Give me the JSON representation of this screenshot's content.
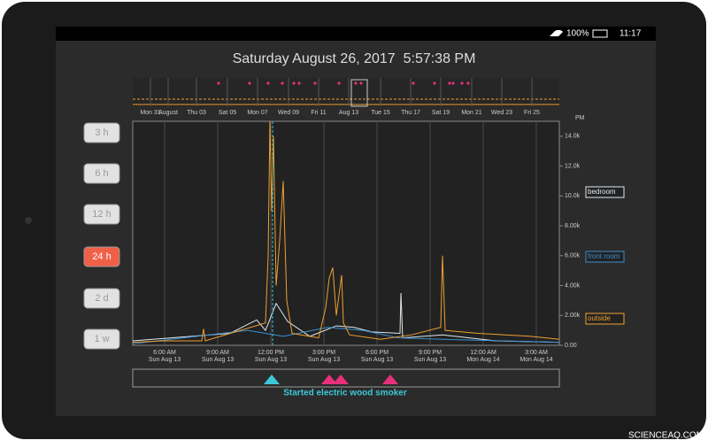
{
  "status_bar": {
    "battery": "100%",
    "time": "11:17"
  },
  "header": {
    "title": "Saturday August 26, 2017  5:57:38 PM"
  },
  "range_buttons": [
    "3 h",
    "6 h",
    "12 h",
    "24 h",
    "2 d",
    "1 w"
  ],
  "active_range": "24 h",
  "overview": {
    "labels": [
      "Mon 31",
      "August",
      "Thu 03",
      "Sat 05",
      "Mon 07",
      "Wed 09",
      "Fri 11",
      "Aug 13",
      "Tue 15",
      "Thu 17",
      "Sat 19",
      "Mon 21",
      "Wed 23",
      "Fri 25"
    ]
  },
  "chart_data": {
    "type": "line",
    "y_label": "PM",
    "xlim": [
      4.2,
      28.3
    ],
    "ylim": [
      0,
      15000
    ],
    "xticks": [
      {
        "value": 6,
        "label": [
          "6:00 AM",
          "Sun Aug 13"
        ]
      },
      {
        "value": 9,
        "label": [
          "9:00 AM",
          "Sun Aug 13"
        ]
      },
      {
        "value": 12,
        "label": [
          "12:00 PM",
          "Sun Aug 13"
        ]
      },
      {
        "value": 15,
        "label": [
          "3:00 PM",
          "Sun Aug 13"
        ]
      },
      {
        "value": 18,
        "label": [
          "6:00 PM",
          "Sun Aug 13"
        ]
      },
      {
        "value": 21,
        "label": [
          "9:00 PM",
          "Sun Aug 13"
        ]
      },
      {
        "value": 24,
        "label": [
          "12:00 AM",
          "Mon Aug 14"
        ]
      },
      {
        "value": 27,
        "label": [
          "3:00 AM",
          "Mon Aug 14"
        ]
      }
    ],
    "yticks": [
      {
        "value": 0,
        "label": "0.00"
      },
      {
        "value": 2000,
        "label": "2.00k"
      },
      {
        "value": 4000,
        "label": "4.00k"
      },
      {
        "value": 6000,
        "label": "6.00k"
      },
      {
        "value": 8000,
        "label": "8.00k"
      },
      {
        "value": 10000,
        "label": "10.0k"
      },
      {
        "value": 12000,
        "label": "12.0k"
      },
      {
        "value": 14000,
        "label": "14.0k"
      }
    ],
    "grid": true,
    "series": [
      {
        "name": "bedroom",
        "color": "#dfe8ef",
        "x": [
          4.2,
          9.7,
          11.2,
          11.7,
          12.3,
          12.95,
          14.2,
          15.7,
          16.7,
          17.7,
          19.3,
          19.35,
          19.45,
          21.7,
          24.7,
          28.3
        ],
        "values": [
          300,
          800,
          1700,
          1000,
          2800,
          1600,
          600,
          1300,
          1200,
          900,
          800,
          3500,
          500,
          700,
          300,
          200
        ]
      },
      {
        "name": "front room",
        "color": "#3a8fd0",
        "x": [
          4.2,
          10.7,
          11.7,
          12.7,
          15.2,
          17.2,
          19.2,
          21.7,
          28.3
        ],
        "values": [
          100,
          1000,
          800,
          600,
          1200,
          1000,
          500,
          400,
          200
        ]
      },
      {
        "name": "outside",
        "color": "#f0a030",
        "x": [
          4.2,
          5.9,
          8.1,
          8.2,
          8.3,
          11.7,
          11.85,
          11.95,
          12.05,
          12.15,
          12.3,
          12.5,
          12.7,
          12.9,
          13.2,
          14.7,
          15.1,
          15.3,
          15.5,
          15.7,
          16.0,
          16.1,
          16.45,
          18.2,
          19.95,
          21.6,
          21.7,
          21.85,
          23.7,
          26.7,
          28.3
        ],
        "values": [
          200,
          300,
          300,
          1100,
          300,
          1500,
          6000,
          15000,
          9000,
          14000,
          4000,
          7000,
          11000,
          3000,
          800,
          500,
          2500,
          4500,
          5200,
          2000,
          4700,
          1500,
          700,
          400,
          700,
          1200,
          6000,
          1000,
          800,
          600,
          400
        ]
      }
    ],
    "cursor_x": 12.1,
    "events": [
      {
        "x": 12.05,
        "color": "#3cc8d8"
      },
      {
        "x": 15.3,
        "color": "#e8307a"
      },
      {
        "x": 15.95,
        "color": "#e8307a"
      },
      {
        "x": 18.75,
        "color": "#e8307a"
      }
    ],
    "annotation": "Started electric wood smoker",
    "annotation_color": "#3cc8d8"
  },
  "watermark": "SCIENCEAQ.COM"
}
